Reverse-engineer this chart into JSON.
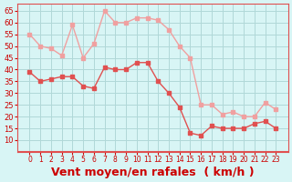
{
  "x": [
    0,
    1,
    2,
    3,
    4,
    5,
    6,
    7,
    8,
    9,
    10,
    11,
    12,
    13,
    14,
    15,
    16,
    17,
    18,
    19,
    20,
    21,
    22,
    23
  ],
  "wind_avg": [
    39,
    35,
    36,
    37,
    37,
    33,
    32,
    41,
    40,
    40,
    43,
    43,
    35,
    30,
    24,
    13,
    12,
    16,
    15,
    15,
    15,
    17,
    18,
    15
  ],
  "wind_gust": [
    55,
    50,
    49,
    46,
    59,
    45,
    51,
    65,
    60,
    60,
    62,
    62,
    61,
    57,
    50,
    45,
    25,
    25,
    21,
    22,
    20,
    20,
    26,
    23
  ],
  "bg_color": "#d8f5f5",
  "grid_color": "#b0d8d8",
  "avg_color": "#e05050",
  "gust_color": "#f0a0a0",
  "xlabel": "Vent moyen/en rafales  ( km/h )",
  "xlabel_color": "#cc0000",
  "xlabel_fontsize": 9,
  "tick_color": "#cc0000",
  "ylim": [
    5,
    68
  ],
  "yticks": [
    10,
    15,
    20,
    25,
    30,
    35,
    40,
    45,
    50,
    55,
    60,
    65
  ],
  "xticks": [
    0,
    1,
    2,
    3,
    4,
    5,
    6,
    7,
    8,
    9,
    10,
    11,
    12,
    13,
    14,
    15,
    16,
    17,
    18,
    19,
    20,
    21,
    22,
    23
  ]
}
